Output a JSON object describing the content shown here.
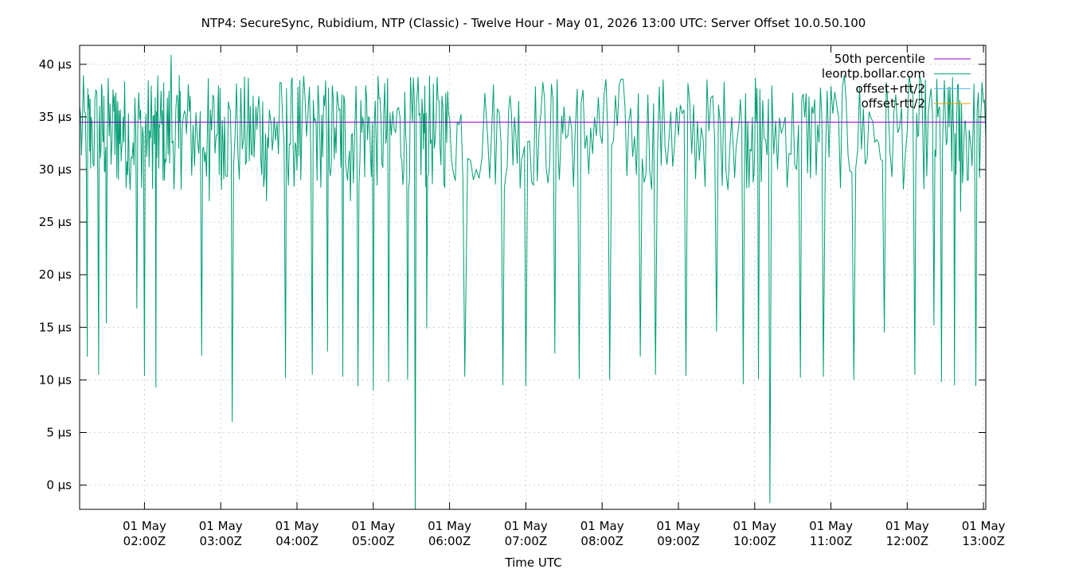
{
  "chart_data": {
    "type": "line",
    "title": "NTP4: SecureSync, Rubidium, NTP (Classic) - Twelve Hour - May 01, 2026 13:00 UTC: Server Offset 10.0.50.100",
    "xlabel": "Time UTC",
    "ylabel": "",
    "ylim": [
      -2.3,
      41.8
    ],
    "xlim": [
      "01 May 01:09Z",
      "01 May 13:02Z"
    ],
    "y_ticks": [
      {
        "value": 0,
        "label": "0 µs"
      },
      {
        "value": 5,
        "label": "5 µs"
      },
      {
        "value": 10,
        "label": "10 µs"
      },
      {
        "value": 15,
        "label": "15 µs"
      },
      {
        "value": 20,
        "label": "20 µs"
      },
      {
        "value": 25,
        "label": "25 µs"
      },
      {
        "value": 30,
        "label": "30 µs"
      },
      {
        "value": 35,
        "label": "35 µs"
      },
      {
        "value": 40,
        "label": "40 µs"
      }
    ],
    "x_ticks": [
      {
        "hour": 2,
        "line1": "01 May",
        "line2": "02:00Z"
      },
      {
        "hour": 3,
        "line1": "01 May",
        "line2": "03:00Z"
      },
      {
        "hour": 4,
        "line1": "01 May",
        "line2": "04:00Z"
      },
      {
        "hour": 5,
        "line1": "01 May",
        "line2": "05:00Z"
      },
      {
        "hour": 6,
        "line1": "01 May",
        "line2": "06:00Z"
      },
      {
        "hour": 7,
        "line1": "01 May",
        "line2": "07:00Z"
      },
      {
        "hour": 8,
        "line1": "01 May",
        "line2": "08:00Z"
      },
      {
        "hour": 9,
        "line1": "01 May",
        "line2": "09:00Z"
      },
      {
        "hour": 10,
        "line1": "01 May",
        "line2": "10:00Z"
      },
      {
        "hour": 11,
        "line1": "01 May",
        "line2": "11:00Z"
      },
      {
        "hour": 12,
        "line1": "01 May",
        "line2": "12:00Z"
      },
      {
        "hour": 13,
        "line1": "01 May",
        "line2": "13:00Z"
      }
    ],
    "grid": true,
    "legend_position": "top-right",
    "legend": [
      {
        "name": "50th percentile",
        "color": "#9400d3"
      },
      {
        "name": "leontp.bollar.com",
        "color": "#009e73"
      },
      {
        "name": "offset+rtt/2",
        "color": "#56b4e9"
      },
      {
        "name": "offset-rtt/2",
        "color": "#e6a000"
      }
    ],
    "series": [
      {
        "name": "50th percentile",
        "color": "#9400d3",
        "x": [
          1.15,
          13.03
        ],
        "y": [
          34.5,
          34.5
        ]
      },
      {
        "name": "leontp.bollar.com",
        "color": "#009e73",
        "x": [
          1.15,
          1.25,
          1.3,
          1.4,
          1.45,
          1.5,
          1.6,
          1.65,
          1.72,
          1.8,
          1.9,
          2.0,
          2.08,
          2.15,
          2.2,
          2.27,
          2.35,
          2.45,
          2.5,
          2.6,
          2.75,
          2.85,
          2.97,
          3.05,
          3.15,
          3.3,
          3.4,
          3.5,
          3.6,
          3.7,
          3.85,
          3.95,
          4.05,
          4.2,
          4.3,
          4.4,
          4.5,
          4.6,
          4.7,
          4.8,
          4.9,
          5.0,
          5.1,
          5.2,
          5.35,
          5.45,
          5.55,
          5.65,
          5.7,
          5.8,
          5.9,
          6.0,
          6.2,
          6.5,
          6.7,
          6.85,
          7.0,
          7.2,
          7.38,
          7.5,
          7.7,
          7.9,
          8.1,
          8.3,
          8.5,
          8.7,
          8.9,
          9.1,
          9.3,
          9.5,
          9.7,
          9.85,
          9.97,
          10.05,
          10.2,
          10.4,
          10.6,
          10.75,
          10.9,
          11.1,
          11.3,
          11.5,
          11.7,
          11.9,
          12.1,
          12.2,
          12.35,
          12.45,
          12.55,
          12.62,
          12.7,
          12.8,
          12.9,
          13.03
        ],
        "y": [
          36.0,
          12.2,
          35.0,
          10.5,
          34.0,
          15.4,
          35.5,
          36.5,
          35.0,
          30.0,
          16.8,
          10.4,
          33.0,
          9.3,
          34.0,
          31.0,
          40.9,
          32.0,
          34.5,
          37.0,
          12.3,
          27.0,
          38.0,
          35.0,
          6.0,
          33.0,
          31.5,
          37.0,
          27.0,
          35.0,
          10.2,
          32.0,
          29.0,
          10.5,
          33.0,
          12.7,
          34.0,
          10.3,
          27.0,
          9.4,
          38.0,
          9.0,
          35.0,
          9.8,
          35.0,
          10.0,
          -2.3,
          35.0,
          14.9,
          32.0,
          37.0,
          35.0,
          10.3,
          33.0,
          9.5,
          35.0,
          9.4,
          35.5,
          12.5,
          36.0,
          10.1,
          35.0,
          10.0,
          36.0,
          12.2,
          10.5,
          35.5,
          10.4,
          34.0,
          14.6,
          35.0,
          9.6,
          35.0,
          10.1,
          -1.7,
          35.0,
          10.2,
          36.0,
          10.3,
          35.0,
          10.0,
          35.5,
          14.5,
          34.0,
          10.5,
          35.0,
          15.2,
          9.8,
          34.0,
          9.5,
          26.0,
          29.0,
          9.4,
          33.0
        ]
      }
    ]
  }
}
